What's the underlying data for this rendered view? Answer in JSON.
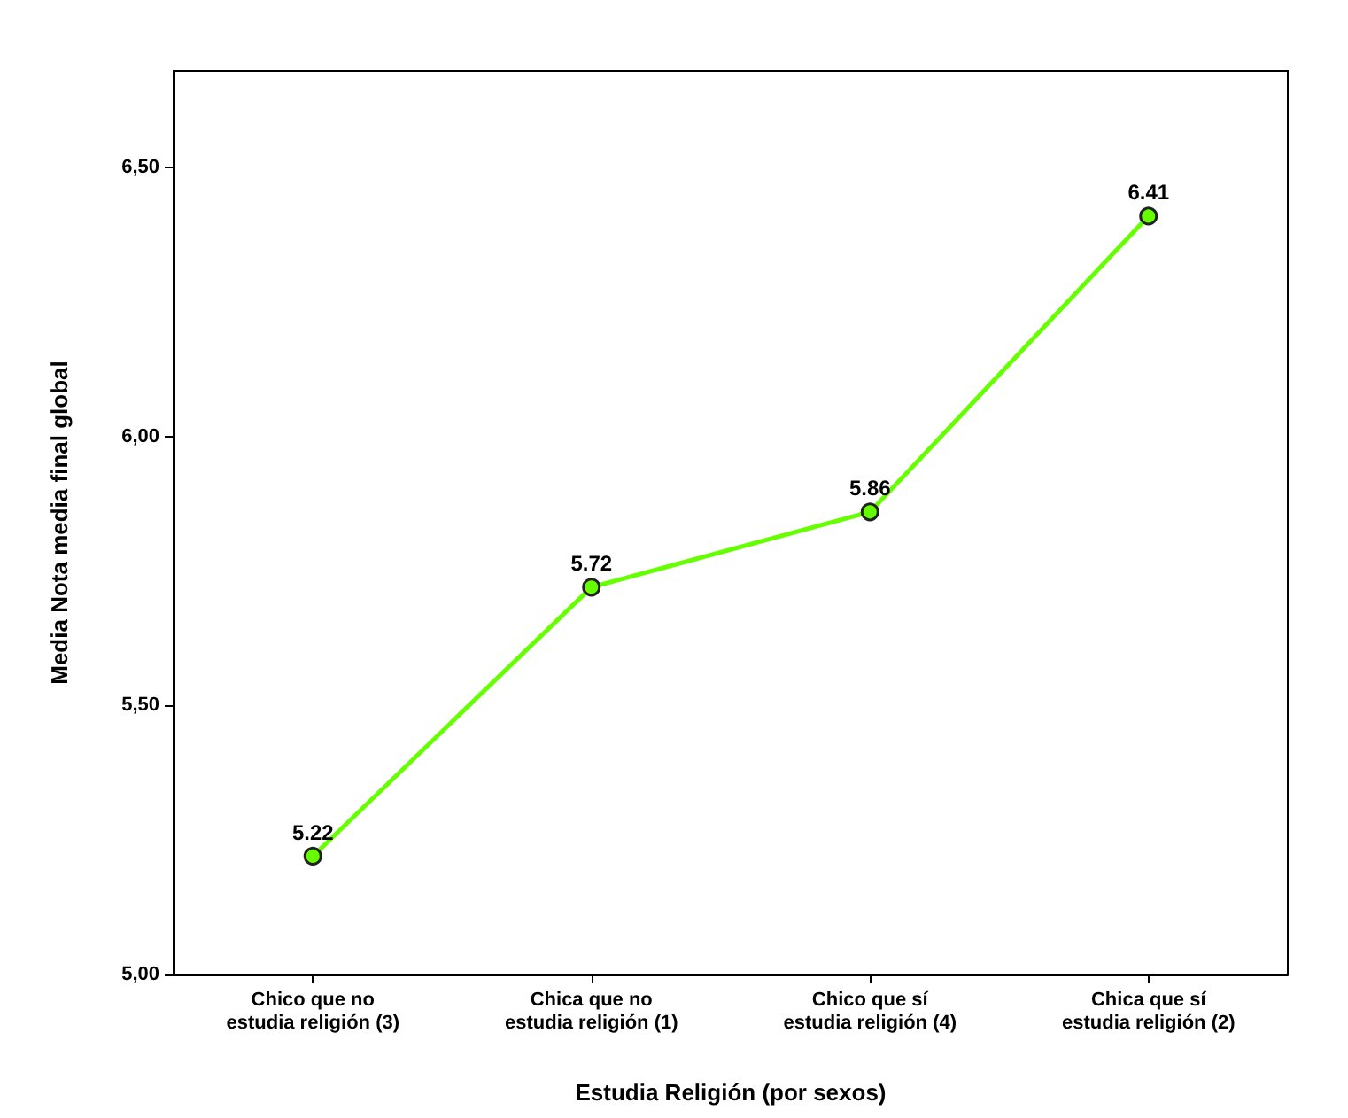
{
  "chart_data": {
    "type": "line",
    "xlabel": "Estudia Religión (por sexos)",
    "ylabel": "Media Nota media final global",
    "categories": [
      "Chico que no\nestudia religión (3)",
      "Chica que no\nestudia religión (1)",
      "Chico que sí\nestudia religión (4)",
      "Chica que sí\nestudia religión (2)"
    ],
    "series": [
      {
        "color": "#66ff00",
        "values": [
          5.22,
          5.72,
          5.86,
          6.41
        ]
      }
    ],
    "ylim": [
      5,
      6.68
    ],
    "yticks": [
      {
        "value": 5,
        "label": "5,00"
      },
      {
        "value": 5.5,
        "label": "5,50"
      },
      {
        "value": 6,
        "label": "6,00"
      },
      {
        "value": 6.5,
        "label": "6,50"
      }
    ],
    "data_labels": true,
    "grid": false,
    "marker": "circle",
    "line_style": "solid"
  }
}
